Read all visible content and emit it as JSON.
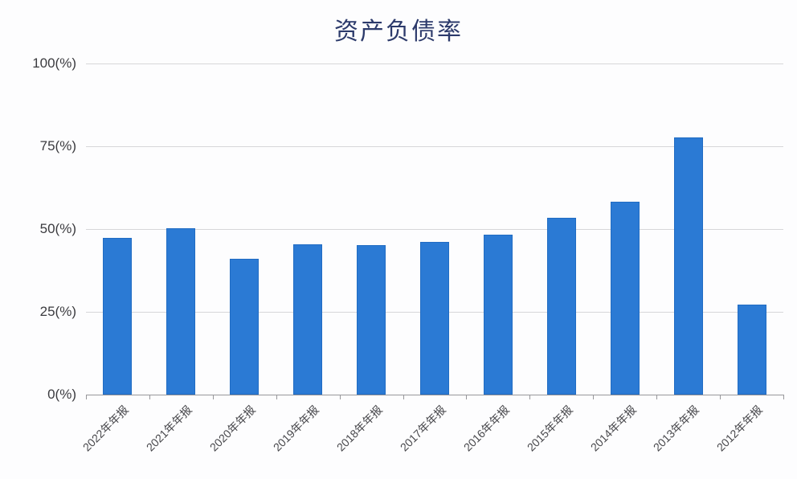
{
  "chart": {
    "title": "资产负债率"
  },
  "chart_data": {
    "type": "bar",
    "title": "资产负债率",
    "xlabel": "",
    "ylabel": "%",
    "categories": [
      "2022年年报",
      "2021年年报",
      "2020年年报",
      "2019年年报",
      "2018年年报",
      "2017年年报",
      "2016年年报",
      "2015年年报",
      "2014年年报",
      "2013年年报",
      "2012年年报"
    ],
    "values": [
      47.4,
      50.2,
      41.0,
      45.4,
      45.1,
      46.1,
      48.3,
      53.4,
      58.3,
      77.7,
      27.2
    ],
    "ylim": [
      0,
      100
    ],
    "y_ticks": [
      {
        "value": 100,
        "label": "100(%)"
      },
      {
        "value": 75,
        "label": "75(%)"
      },
      {
        "value": 50,
        "label": "50(%)"
      },
      {
        "value": 25,
        "label": "25(%)"
      },
      {
        "value": 0,
        "label": "0(%)"
      }
    ],
    "grid": true,
    "legend": "none",
    "colors": {
      "bar": "#2b7ad4",
      "title": "#2c3a6b",
      "grid": "#d7d7d9",
      "axis": "#97979b",
      "y_tick_label": "#3b3b3f",
      "x_tick_label": "#48484c"
    }
  }
}
